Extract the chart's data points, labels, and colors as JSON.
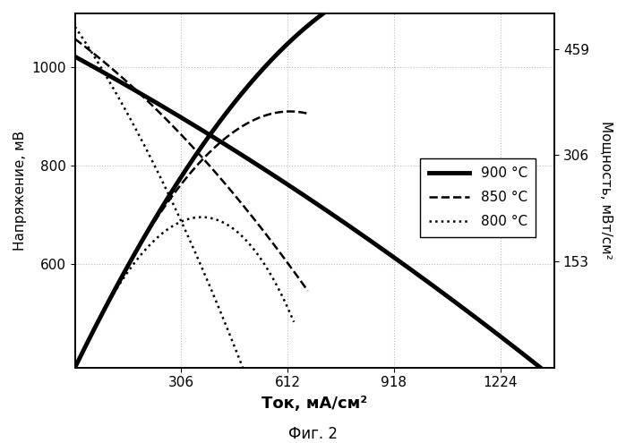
{
  "xlabel": "Ток, мА/см²",
  "ylabel_left": "Напряжение, мВ",
  "ylabel_right": "Мощность, мВт/см²",
  "caption": "Фиг. 2",
  "xlim": [
    0,
    1380
  ],
  "ylim_left": [
    390,
    1110
  ],
  "ylim_right": [
    0,
    510
  ],
  "xticks": [
    306,
    612,
    918,
    1224
  ],
  "yticks_left": [
    600,
    800,
    1000
  ],
  "yticks_right": [
    153,
    306,
    459
  ],
  "legend": [
    "900 °C",
    "850 °C",
    "800 °C"
  ],
  "linestyles": [
    "-",
    "--",
    ":"
  ],
  "linewidths": [
    3.5,
    1.8,
    1.8
  ],
  "background": "#ffffff",
  "grid_color": "#bbbbbb",
  "V900": {
    "I_max": 1355,
    "v0": 1022,
    "a1": 0.385,
    "a2": 6.5e-05
  },
  "V850": {
    "I_max": 670,
    "v0": 1058,
    "a1": 0.53,
    "a2": 0.00035
  },
  "V800": {
    "I_max": 630,
    "v0": 1083,
    "a1": 1.05,
    "a2": 0.0008
  }
}
